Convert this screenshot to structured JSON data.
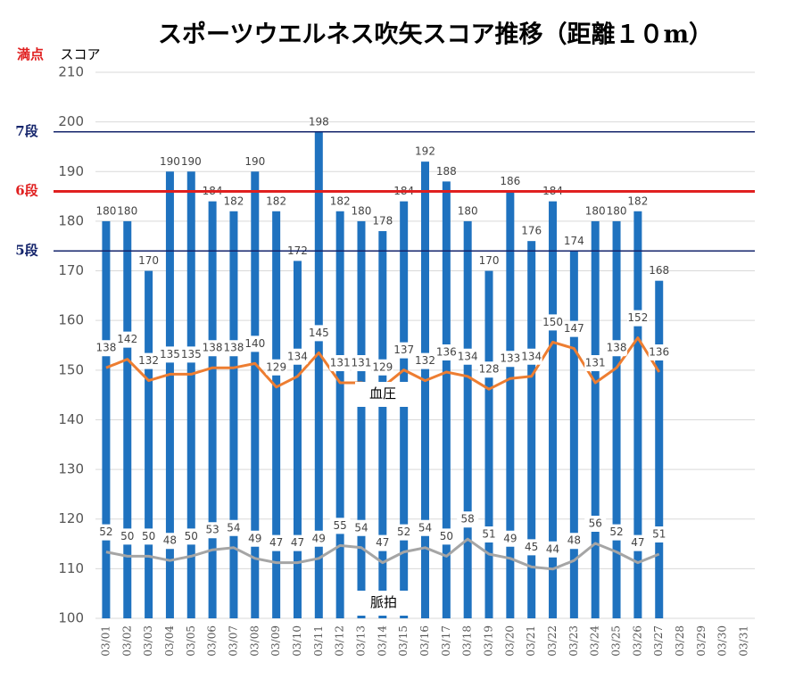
{
  "chart_data": {
    "type": "bar",
    "title": "スポーツウエルネス吹矢スコア推移（距離１０m）",
    "y_label": "スコア",
    "annotations": {
      "full_score": "満点",
      "bp": "血圧",
      "pulse": "脈拍"
    },
    "categories": [
      "03/01",
      "03/02",
      "03/03",
      "03/04",
      "03/05",
      "03/06",
      "03/07",
      "03/08",
      "03/09",
      "03/10",
      "03/11",
      "03/12",
      "03/13",
      "03/14",
      "03/15",
      "03/16",
      "03/17",
      "03/18",
      "03/19",
      "03/20",
      "03/21",
      "03/22",
      "03/23",
      "03/24",
      "03/25",
      "03/26",
      "03/27",
      "03/28",
      "03/29",
      "03/30",
      "03/31"
    ],
    "series": [
      {
        "type": "bar",
        "color": "#1f72bf",
        "values": [
          180,
          180,
          170,
          190,
          190,
          184,
          182,
          190,
          182,
          172,
          198,
          182,
          180,
          178,
          184,
          192,
          188,
          180,
          170,
          186,
          176,
          184,
          174,
          180,
          180,
          182,
          168,
          null,
          null,
          null,
          null
        ]
      },
      {
        "type": "line",
        "axis": "y2",
        "color": "#ed7d31",
        "values": [
          138,
          142,
          132,
          135,
          135,
          138,
          138,
          140,
          129,
          134,
          145,
          131,
          131,
          129,
          137,
          132,
          136,
          134,
          128,
          133,
          134,
          150,
          147,
          131,
          138,
          152,
          136,
          null,
          null,
          null,
          null
        ]
      },
      {
        "type": "line",
        "axis": "y2",
        "color": "#a5a5a5",
        "values": [
          52,
          50,
          50,
          48,
          50,
          53,
          54,
          49,
          47,
          47,
          49,
          55,
          54,
          47,
          52,
          54,
          50,
          58,
          51,
          49,
          45,
          44,
          48,
          56,
          52,
          47,
          51,
          null,
          null,
          null,
          null
        ]
      }
    ],
    "reference_lines": [
      {
        "label": "7段",
        "value": 198,
        "color": "#14246b"
      },
      {
        "label": "6段",
        "value": 186,
        "color": "#e02020"
      },
      {
        "label": "5段",
        "value": 174,
        "color": "#14246b"
      }
    ],
    "ylim": [
      100,
      210
    ],
    "yticks": [
      100,
      110,
      120,
      130,
      140,
      150,
      160,
      170,
      180,
      190,
      200,
      210
    ],
    "y2lim": [
      21,
      276
    ],
    "grid": true
  }
}
